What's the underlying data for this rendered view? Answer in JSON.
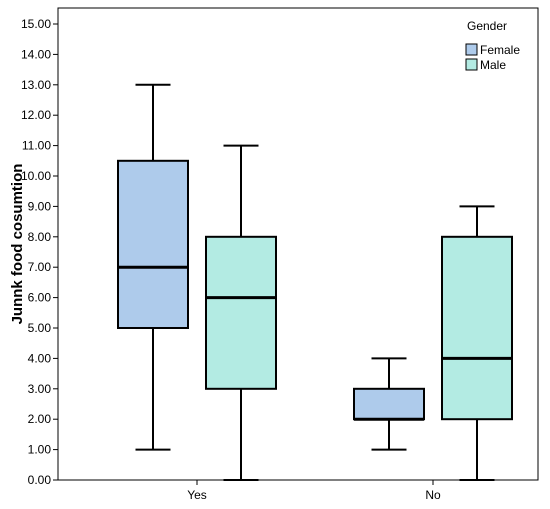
{
  "chart_data": {
    "type": "boxplot",
    "xlabel": "",
    "ylabel": "Junnk food cosumtion",
    "ylim": [
      0,
      15
    ],
    "yticks": [
      "0.00",
      "1.00",
      "2.00",
      "3.00",
      "4.00",
      "5.00",
      "6.00",
      "7.00",
      "8.00",
      "9.00",
      "10.00",
      "11.00",
      "12.00",
      "13.00",
      "14.00",
      "15.00"
    ],
    "categories": [
      "Yes",
      "No"
    ],
    "legend": {
      "title": "Gender",
      "placement": "top-right"
    },
    "grid": false,
    "series": [
      {
        "name": "Female",
        "color": "#aecbeb",
        "boxes": [
          {
            "category": "Yes",
            "min": 1,
            "q1": 5,
            "median": 7,
            "q3": 10.5,
            "max": 13
          },
          {
            "category": "No",
            "min": 1,
            "q1": 2,
            "median": 2,
            "q3": 3,
            "max": 4
          }
        ]
      },
      {
        "name": "Male",
        "color": "#b3ebe3",
        "boxes": [
          {
            "category": "Yes",
            "min": 0,
            "q1": 3,
            "median": 6,
            "q3": 8,
            "max": 11
          },
          {
            "category": "No",
            "min": 0,
            "q1": 2,
            "median": 4,
            "q3": 8,
            "max": 9
          }
        ]
      }
    ]
  }
}
